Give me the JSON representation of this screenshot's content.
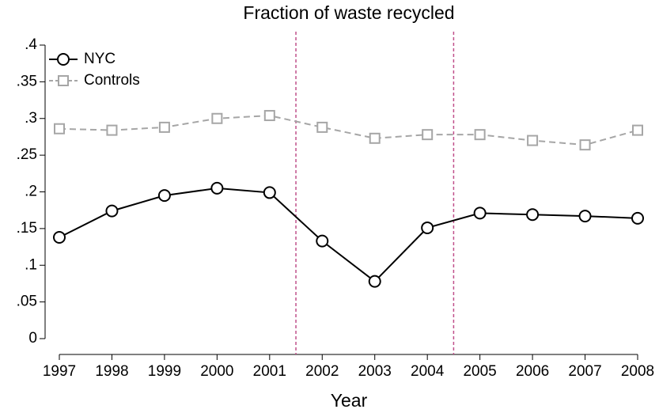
{
  "chart_data": {
    "type": "line",
    "title": "Fraction of waste recycled",
    "xlabel": "Year",
    "x": [
      1997,
      1998,
      1999,
      2000,
      2001,
      2002,
      2003,
      2004,
      2005,
      2006,
      2007,
      2008
    ],
    "series": [
      {
        "name": "NYC",
        "color": "#000000",
        "marker": "circle",
        "dash": "solid",
        "values": [
          0.138,
          0.174,
          0.195,
          0.205,
          0.199,
          0.133,
          0.078,
          0.151,
          0.171,
          0.169,
          0.167,
          0.164
        ]
      },
      {
        "name": "Controls",
        "color": "#a6a6a6",
        "marker": "square",
        "dash": "dashed",
        "values": [
          0.286,
          0.284,
          0.288,
          0.3,
          0.304,
          0.288,
          0.273,
          0.278,
          0.278,
          0.27,
          0.264,
          0.284
        ]
      }
    ],
    "xlim": [
      1997,
      2008
    ],
    "xticks": [
      1997,
      1998,
      1999,
      2000,
      2001,
      2002,
      2003,
      2004,
      2005,
      2006,
      2007,
      2008
    ],
    "ylim": [
      0,
      0.4
    ],
    "yticks": [
      0,
      {
        "value": 0.05,
        "label": ".05"
      },
      {
        "value": 0.1,
        "label": ".1"
      },
      {
        "value": 0.15,
        "label": ".15"
      },
      {
        "value": 0.2,
        "label": ".2"
      },
      {
        "value": 0.25,
        "label": ".25"
      },
      {
        "value": 0.3,
        "label": ".3"
      },
      {
        "value": 0.35,
        "label": ".35"
      },
      {
        "value": 0.4,
        "label": ".4"
      }
    ],
    "vlines": [
      2001.5,
      2004.5
    ],
    "vline_color": "#c0508b",
    "legend": "top-left",
    "grid": false
  }
}
